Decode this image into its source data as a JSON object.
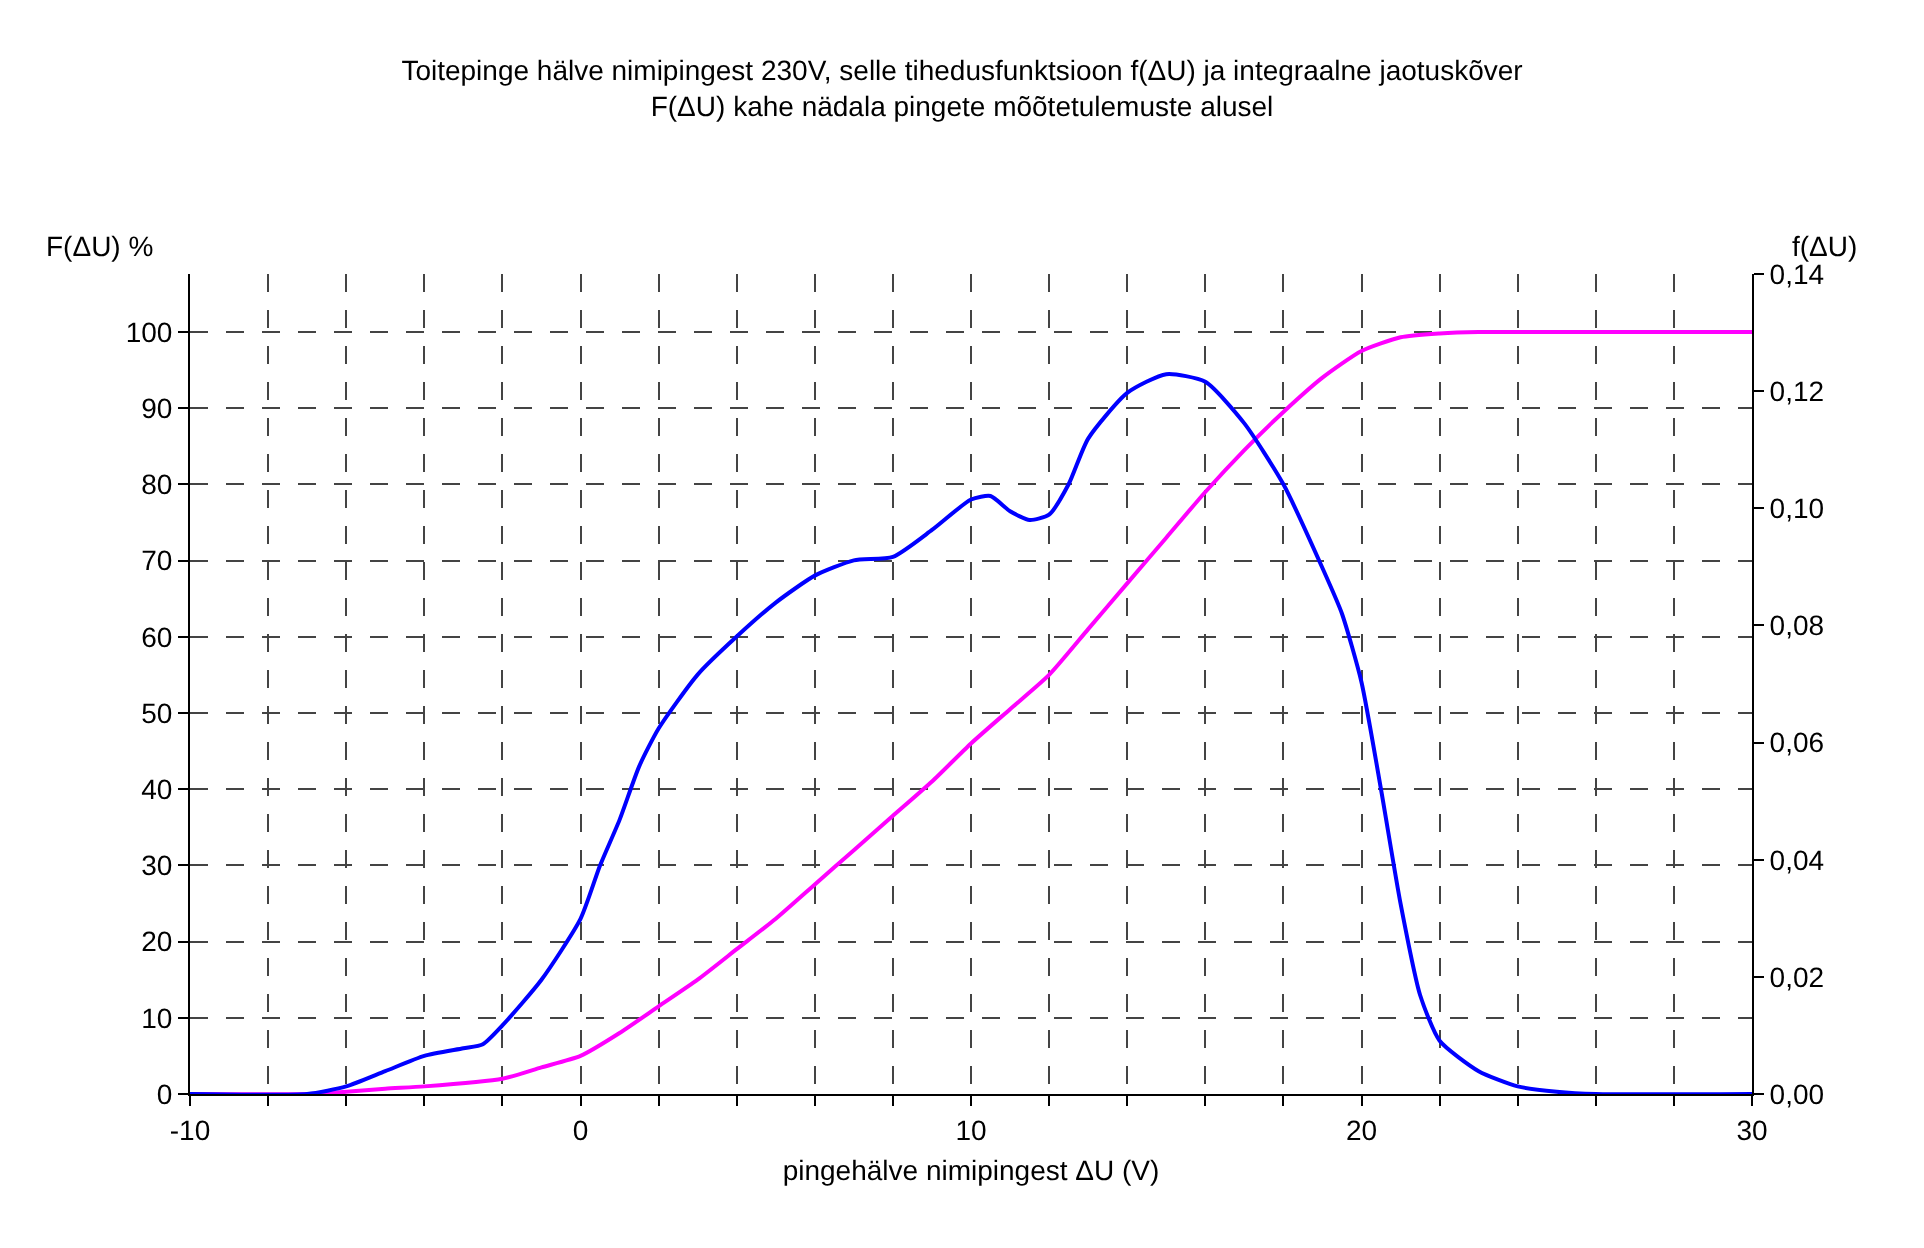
{
  "chart_data": {
    "type": "line",
    "title": "Toitepinge hälve nimipingest 230V, selle tihedusfunktsioon f(ΔU) ja integraalne jaotuskõver\nF(ΔU) kahe nädala pingete mõõtetulemuste alusel",
    "xlabel": "pingehälve nimipingest ΔU (V)",
    "ylabel": "F(ΔU) %",
    "y2label": "f(ΔU)",
    "series": [
      {
        "color": "#ff00ff",
        "x": [
          -10,
          -7,
          -6,
          -5,
          -4,
          -2,
          -1,
          0,
          1,
          2,
          3,
          4,
          5,
          6,
          7,
          8,
          9,
          10,
          11,
          12,
          13,
          14,
          15,
          16,
          17,
          18,
          19,
          20,
          21,
          22,
          23,
          30
        ],
        "values": [
          0,
          0,
          0.3,
          0.7,
          1,
          2,
          3.5,
          5,
          8,
          11.5,
          15,
          19,
          23,
          27.5,
          32,
          36.5,
          41,
          46,
          50.5,
          55,
          61,
          67,
          73,
          79,
          84.5,
          89.5,
          94,
          97.5,
          99.3,
          99.8,
          100,
          100
        ]
      },
      {
        "color": "#0000ff",
        "axis": "y2",
        "x": [
          -10,
          -7,
          -6,
          -5,
          -4,
          -3,
          -2.5,
          -2,
          -1,
          0,
          0.5,
          1,
          1.5,
          2,
          3,
          4,
          5,
          6,
          7,
          8,
          9,
          10,
          10.5,
          11,
          11.5,
          12,
          12.5,
          13,
          14,
          15,
          16,
          17,
          18,
          19,
          19.5,
          20,
          20.5,
          21,
          21.5,
          22,
          23,
          24,
          25,
          26,
          30
        ],
        "values": [
          0,
          0,
          0.0013,
          0.0039,
          0.0065,
          0.0078,
          0.0085,
          0.0117,
          0.0195,
          0.0299,
          0.039,
          0.0468,
          0.0559,
          0.0624,
          0.0716,
          0.0781,
          0.0839,
          0.0885,
          0.0911,
          0.0917,
          0.0963,
          0.1015,
          0.1021,
          0.0995,
          0.098,
          0.0989,
          0.1041,
          0.1119,
          0.1197,
          0.1229,
          0.1216,
          0.1145,
          0.1041,
          0.0898,
          0.082,
          0.0703,
          0.052,
          0.0325,
          0.0169,
          0.0091,
          0.0039,
          0.0013,
          0.0004,
          0,
          0
        ]
      }
    ],
    "xlim": [
      -10,
      30
    ],
    "xticks": [
      -10,
      {
        "value": -8,
        "label": null
      },
      {
        "value": -6,
        "label": null
      },
      {
        "value": -4,
        "label": null
      },
      {
        "value": -2,
        "label": null
      },
      0,
      {
        "value": 2,
        "label": null
      },
      {
        "value": 4,
        "label": null
      },
      {
        "value": 6,
        "label": null
      },
      {
        "value": 8,
        "label": null
      },
      10,
      {
        "value": 12,
        "label": null
      },
      {
        "value": 14,
        "label": null
      },
      {
        "value": 16,
        "label": null
      },
      {
        "value": 18,
        "label": null
      },
      20,
      {
        "value": 22,
        "label": null
      },
      {
        "value": 24,
        "label": null
      },
      {
        "value": 26,
        "label": null
      },
      {
        "value": 28,
        "label": null
      },
      30
    ],
    "ylim": [
      0,
      107.6
    ],
    "yticks": [
      0,
      10,
      20,
      30,
      40,
      50,
      60,
      70,
      80,
      90,
      100
    ],
    "y2lim": [
      0,
      0.14
    ],
    "y2ticks": [
      {
        "value": 0,
        "label": "0,00"
      },
      {
        "value": 0.02,
        "label": "0,02"
      },
      {
        "value": 0.04,
        "label": "0,04"
      },
      {
        "value": 0.06,
        "label": "0,06"
      },
      {
        "value": 0.08,
        "label": "0,08"
      },
      {
        "value": 0.1,
        "label": "0,10"
      },
      {
        "value": 0.12,
        "label": "0,12"
      },
      {
        "value": 0.14,
        "label": "0,14"
      }
    ],
    "grid": true,
    "marker": "none",
    "line_style": "solid"
  }
}
